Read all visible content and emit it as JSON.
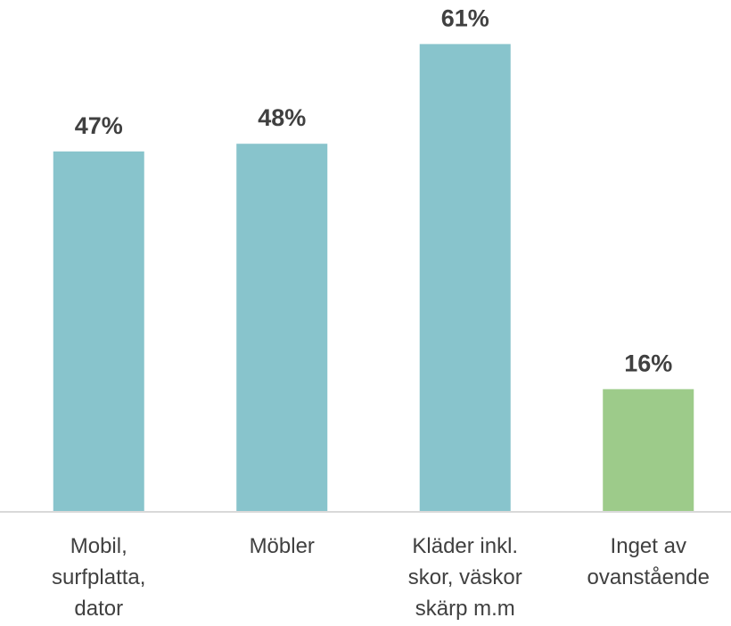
{
  "chart_data": {
    "type": "bar",
    "categories": [
      "Mobil,\nsurfplatta,\ndator",
      "Möbler",
      "Kläder inkl.\nskor, väskor\nskärp m.m",
      "Inget av\novanstående"
    ],
    "values": [
      47,
      48,
      61,
      16
    ],
    "value_labels": [
      "47%",
      "48%",
      "61%",
      "16%"
    ],
    "colors": [
      "#88c4cc",
      "#88c4cc",
      "#88c4cc",
      "#9dcb8a"
    ],
    "ylim": [
      0,
      65
    ]
  }
}
